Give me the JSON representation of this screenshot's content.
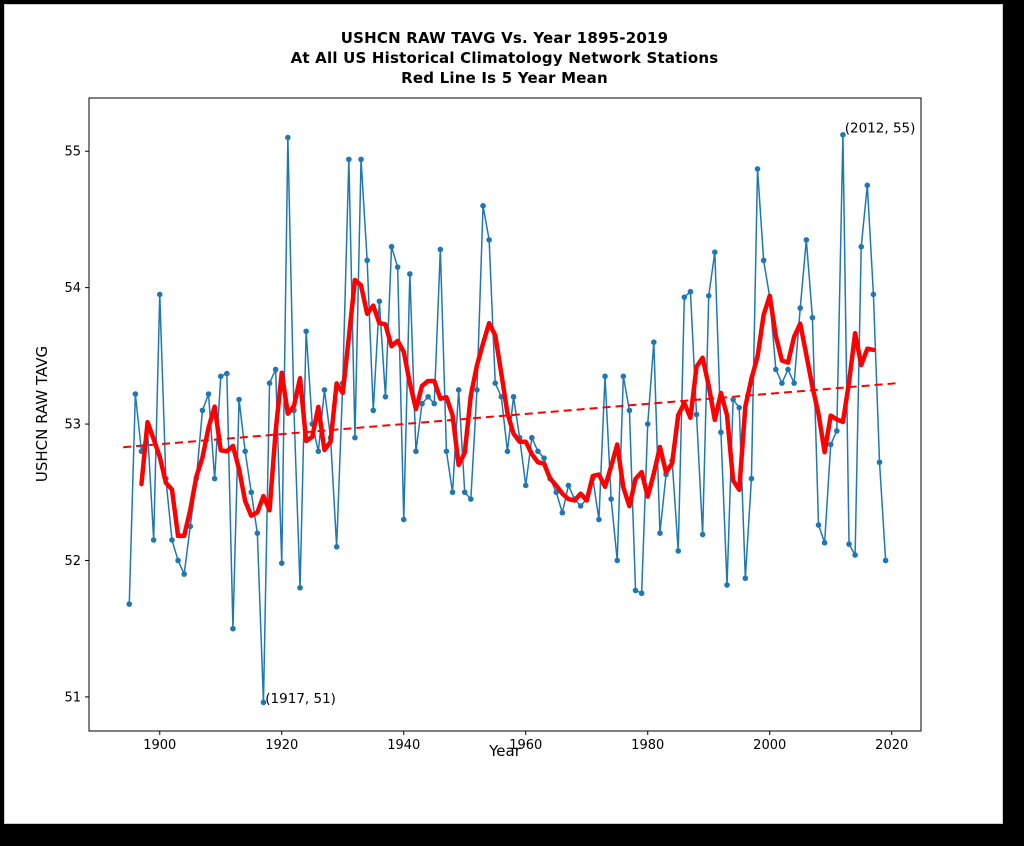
{
  "page": {
    "title_line1": "USHCN RAW TAVG Vs. Year 1895-2019",
    "title_line2": "At All US Historical Climatology Network Stations",
    "title_line3": "Red Line Is 5 Year Mean"
  },
  "chart_data": {
    "type": "line",
    "title": "USHCN RAW TAVG Vs. Year 1895-2019\nAt All US Historical Climatology Network Stations\nRed Line Is 5 Year Mean",
    "xlabel": "Year",
    "ylabel": "USHCN RAW TAVG",
    "xlim": [
      1888.4,
      2024.8
    ],
    "ylim": [
      50.75,
      55.39
    ],
    "x_ticks": [
      1900,
      1920,
      1940,
      1960,
      1980,
      2000,
      2020
    ],
    "y_ticks": [
      51,
      52,
      53,
      54,
      55
    ],
    "grid": false,
    "legend_position": "none",
    "colors": {
      "annual_line": "#1f77b4",
      "mean_line": "#ff0000",
      "trend_line": "#ff0000"
    },
    "x": [
      1895,
      1896,
      1897,
      1898,
      1899,
      1900,
      1901,
      1902,
      1903,
      1904,
      1905,
      1906,
      1907,
      1908,
      1909,
      1910,
      1911,
      1912,
      1913,
      1914,
      1915,
      1916,
      1917,
      1918,
      1919,
      1920,
      1921,
      1922,
      1923,
      1924,
      1925,
      1926,
      1927,
      1928,
      1929,
      1930,
      1931,
      1932,
      1933,
      1934,
      1935,
      1936,
      1937,
      1938,
      1939,
      1940,
      1941,
      1942,
      1943,
      1944,
      1945,
      1946,
      1947,
      1948,
      1949,
      1950,
      1951,
      1952,
      1953,
      1954,
      1955,
      1956,
      1957,
      1958,
      1959,
      1960,
      1961,
      1962,
      1963,
      1964,
      1965,
      1966,
      1967,
      1968,
      1969,
      1970,
      1971,
      1972,
      1973,
      1974,
      1975,
      1976,
      1977,
      1978,
      1979,
      1980,
      1981,
      1982,
      1983,
      1984,
      1985,
      1986,
      1987,
      1988,
      1989,
      1990,
      1991,
      1992,
      1993,
      1994,
      1995,
      1996,
      1997,
      1998,
      1999,
      2000,
      2001,
      2002,
      2003,
      2004,
      2005,
      2006,
      2007,
      2008,
      2009,
      2010,
      2011,
      2012,
      2013,
      2014,
      2015,
      2016,
      2017,
      2018,
      2019
    ],
    "series": [
      {
        "name": "annual_raw_tavg",
        "style": "line_with_markers",
        "values": [
          51.68,
          53.22,
          52.8,
          52.95,
          52.15,
          53.95,
          52.6,
          52.15,
          52.0,
          51.9,
          52.25,
          52.6,
          53.1,
          53.22,
          52.6,
          53.35,
          53.37,
          51.5,
          53.18,
          52.8,
          52.5,
          52.2,
          50.96,
          53.3,
          53.4,
          51.98,
          55.1,
          53.1,
          51.8,
          53.68,
          53.0,
          52.8,
          53.25,
          52.9,
          52.1,
          53.3,
          54.94,
          52.9,
          54.94,
          54.2,
          53.1,
          53.9,
          53.2,
          54.3,
          54.15,
          52.3,
          54.1,
          52.8,
          53.15,
          53.2,
          53.15,
          54.28,
          52.8,
          52.5,
          53.25,
          52.5,
          52.45,
          53.25,
          54.6,
          54.35,
          53.3,
          53.2,
          52.8,
          53.2,
          52.9,
          52.55,
          52.9,
          52.8,
          52.75,
          52.6,
          52.5,
          52.35,
          52.55,
          52.45,
          52.4,
          52.45,
          52.6,
          52.3,
          53.35,
          52.45,
          52.0,
          53.35,
          53.1,
          51.78,
          51.76,
          53.0,
          53.6,
          52.2,
          52.63,
          52.73,
          52.07,
          53.93,
          53.97,
          53.07,
          52.19,
          53.94,
          54.26,
          52.94,
          51.82,
          53.18,
          53.12,
          51.87,
          52.6,
          54.87,
          54.2,
          53.93,
          53.4,
          53.3,
          53.4,
          53.3,
          53.85,
          54.35,
          53.78,
          52.26,
          52.13,
          52.85,
          52.95,
          55.12,
          52.12,
          52.04,
          54.3,
          54.75,
          53.95,
          52.72,
          52.0
        ]
      },
      {
        "name": "five_year_mean",
        "style": "thick_line",
        "derived": "centered 5-year moving average of annual_raw_tavg"
      },
      {
        "name": "linear_trend",
        "style": "dashed_line",
        "endpoints_x": [
          1894,
          2021
        ],
        "endpoints_y": [
          52.83,
          53.3
        ]
      }
    ],
    "annotations": [
      {
        "text": "(2012, 55)",
        "x": 2012.3,
        "y": 55.17
      },
      {
        "text": "(1917, 51)",
        "x": 1917.3,
        "y": 50.99
      }
    ]
  }
}
